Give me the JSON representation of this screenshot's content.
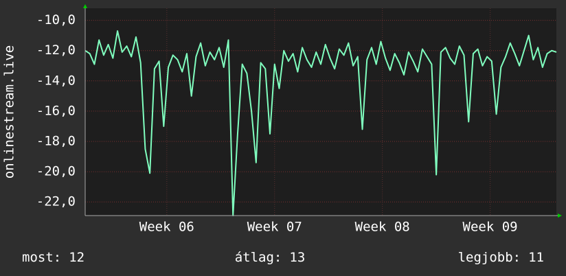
{
  "chart_data": {
    "type": "line",
    "y_label": "onlinestream.live",
    "x": [
      0,
      0.3,
      0.6,
      0.9,
      1.2,
      1.5,
      1.8,
      2.1,
      2.4,
      2.7,
      3,
      3.3,
      3.6,
      3.9,
      4.2,
      4.5,
      4.8,
      5.1,
      5.4,
      5.7,
      6,
      6.3,
      6.6,
      6.9,
      7.2,
      7.5,
      7.8,
      8.1,
      8.4,
      8.7,
      9,
      9.3,
      9.6,
      9.9,
      10.2,
      10.5,
      10.8,
      11.1,
      11.4,
      11.7,
      12,
      12.3,
      12.6,
      12.9,
      13.2,
      13.5,
      13.8,
      14.1,
      14.4,
      14.7,
      15,
      15.3,
      15.6,
      15.9,
      16.2,
      16.5,
      16.8,
      17.1,
      17.4,
      17.7,
      18,
      18.3,
      18.6,
      18.9,
      19.2,
      19.5,
      19.8,
      20.1,
      20.4,
      20.7,
      21,
      21.3,
      21.6,
      21.9,
      22.2,
      22.5,
      22.8,
      23.1,
      23.4,
      23.7,
      24,
      24.3,
      24.6,
      24.9,
      25.2,
      25.5,
      25.8,
      26.1,
      26.4,
      26.7,
      27,
      27.3,
      27.6,
      27.9,
      28.2,
      28.5,
      28.8,
      29.1,
      29.4,
      29.7,
      30,
      30.3,
      30.6
    ],
    "series": [
      {
        "name": "onlinestream.live",
        "color": "#80ffbf",
        "values": [
          -12,
          -12.2,
          -12.9,
          -11.3,
          -12.3,
          -11.6,
          -12.5,
          -10.7,
          -12.1,
          -11.7,
          -12.4,
          -11.1,
          -12.8,
          -18.5,
          -20.1,
          -13.2,
          -12.7,
          -17,
          -13.1,
          -12.3,
          -12.6,
          -13.4,
          -12.2,
          -15,
          -12.4,
          -11.5,
          -13,
          -12.1,
          -12.6,
          -11.8,
          -13.1,
          -11.3,
          -22.9,
          -17.5,
          -12.9,
          -13.5,
          -16,
          -19.4,
          -12.8,
          -13.2,
          -17.5,
          -12.9,
          -14.5,
          -12,
          -12.7,
          -12.2,
          -13.4,
          -11.8,
          -12.6,
          -13.1,
          -12.1,
          -12.9,
          -11.6,
          -12.5,
          -13.2,
          -11.9,
          -12.3,
          -11.5,
          -13,
          -12.4,
          -17.2,
          -12.6,
          -11.8,
          -12.9,
          -11.4,
          -12.5,
          -13.3,
          -12.2,
          -12.8,
          -13.6,
          -12.1,
          -12.7,
          -13.4,
          -11.9,
          -12.4,
          -12.9,
          -20.2,
          -12.1,
          -11.8,
          -12.5,
          -12.9,
          -11.7,
          -12.3,
          -16.7,
          -12.2,
          -11.9,
          -13,
          -12.4,
          -12.7,
          -16.2,
          -13.1,
          -12.4,
          -11.5,
          -12.2,
          -13,
          -12,
          -11,
          -12.6,
          -11.8,
          -13.1,
          -12.2,
          -12,
          -12.1
        ]
      }
    ],
    "xlim": [
      0,
      30.6
    ],
    "xticks": [
      {
        "value": 5.3,
        "label": "Week 06"
      },
      {
        "value": 12.3,
        "label": "Week 07"
      },
      {
        "value": 19.3,
        "label": "Week 08"
      },
      {
        "value": 26.3,
        "label": "Week 09"
      }
    ],
    "ylim": [
      -22.9,
      -9.2
    ],
    "yticks": [
      {
        "value": -10,
        "label": "-10,0"
      },
      {
        "value": -12,
        "label": "-12,0"
      },
      {
        "value": -14,
        "label": "-14,0"
      },
      {
        "value": -16,
        "label": "-16,0"
      },
      {
        "value": -18,
        "label": "-18,0"
      },
      {
        "value": -20,
        "label": "-20,0"
      },
      {
        "value": -22,
        "label": "-22,0"
      }
    ],
    "grid": true,
    "stats": [
      {
        "label": "most:",
        "value": 12
      },
      {
        "label": "átlag:",
        "value": 13
      },
      {
        "label": "legjobb:",
        "value": 11
      }
    ]
  }
}
